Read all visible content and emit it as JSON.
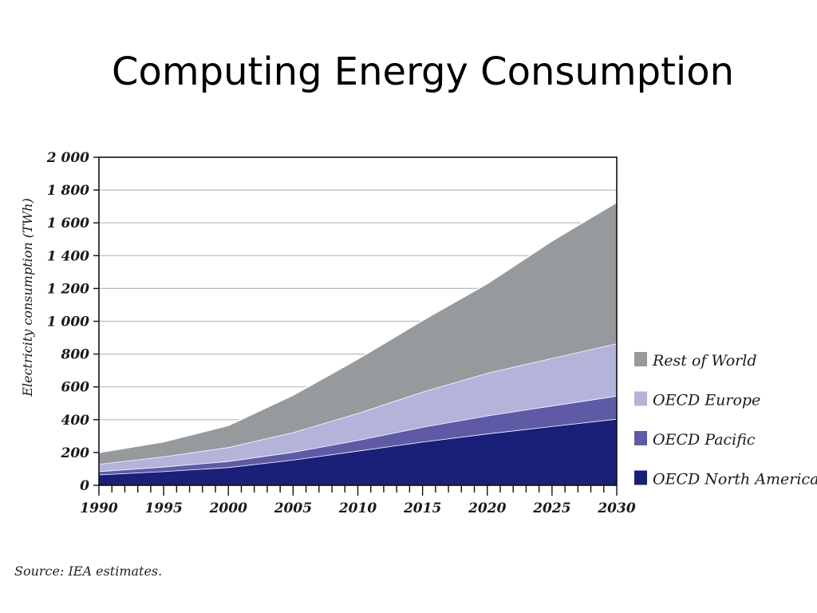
{
  "slide": {
    "title": "Computing Energy Consumption",
    "source": "Source: IEA estimates."
  },
  "chart_data": {
    "type": "area",
    "stacked": true,
    "ylabel": "Electricity consumption (TWh)",
    "xlabel": "",
    "xlim": [
      1990,
      2030
    ],
    "ylim": [
      0,
      2000
    ],
    "x_ticks": [
      1990,
      1995,
      2000,
      2005,
      2010,
      2015,
      2020,
      2025,
      2030
    ],
    "y_ticks": [
      0,
      200,
      400,
      600,
      800,
      1000,
      1200,
      1400,
      1600,
      1800,
      2000
    ],
    "y_tick_labels": [
      "0",
      "200",
      "400",
      "600",
      "800",
      "1 000",
      "1 200",
      "1 400",
      "1 600",
      "1 800",
      "2 000"
    ],
    "grid": "horizontal",
    "legend_position": "right",
    "x": [
      1990,
      1995,
      2000,
      2005,
      2010,
      2015,
      2020,
      2025,
      2030
    ],
    "series": [
      {
        "name": "OECD North America",
        "color": "#1a1f78",
        "values": [
          65,
          85,
          110,
          155,
          210,
          265,
          315,
          360,
          405
        ]
      },
      {
        "name": "OECD Pacific",
        "color": "#5f5aa6",
        "values": [
          20,
          28,
          37,
          48,
          65,
          90,
          110,
          125,
          140
        ]
      },
      {
        "name": "OECD Europe",
        "color": "#b4b3da",
        "values": [
          45,
          62,
          85,
          120,
          165,
          215,
          260,
          290,
          320
        ]
      },
      {
        "name": "Rest of World",
        "color": "#969a9c",
        "values": [
          70,
          90,
          133,
          227,
          330,
          435,
          545,
          715,
          860
        ]
      }
    ],
    "legend_order": [
      "Rest of World",
      "OECD Europe",
      "OECD Pacific",
      "OECD North America"
    ]
  }
}
